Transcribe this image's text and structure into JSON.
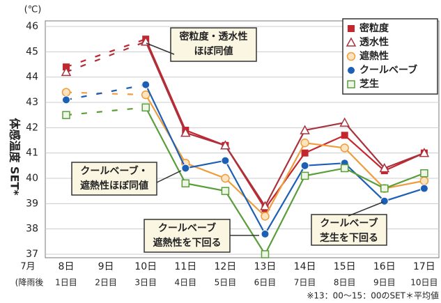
{
  "chart_data": {
    "type": "line",
    "unit": "(℃)",
    "y_label": "体感温度 SET*",
    "x_prefix": "7月",
    "day_prefix": "(降雨後",
    "categories": [
      "8日",
      "9日",
      "10日",
      "11日",
      "12日",
      "13日",
      "14日",
      "15日",
      "16日",
      "17日"
    ],
    "days": [
      "1日目",
      "2日目",
      "3日目",
      "4日目",
      "5日目",
      "6日目",
      "7日目",
      "8日目",
      "9日目",
      "10日目"
    ],
    "ylim": [
      37,
      46
    ],
    "yticks": [
      37,
      38,
      39,
      40,
      41,
      42,
      43,
      44,
      45,
      46
    ],
    "grid": true,
    "legend": "upper right",
    "note": "※13：00～15：00のSET＊平均値",
    "series": [
      {
        "name": "密粒度",
        "color": "#c4262e",
        "marker": "square",
        "values": [
          44.4,
          null,
          45.5,
          41.9,
          41.3,
          38.8,
          41.0,
          41.7,
          40.3,
          41.0
        ]
      },
      {
        "name": "透水性",
        "color": "#a8323e",
        "marker": "triangle",
        "values": [
          44.2,
          null,
          45.4,
          41.8,
          41.3,
          38.9,
          41.9,
          42.2,
          40.4,
          41.0
        ]
      },
      {
        "name": "遮熱性",
        "color": "#ee9c3c",
        "marker": "circle-open",
        "values": [
          43.4,
          null,
          43.3,
          40.6,
          40.0,
          38.5,
          41.4,
          41.2,
          39.6,
          39.9
        ]
      },
      {
        "name": "クールベーブ",
        "color": "#1c5fb5",
        "marker": "circle",
        "values": [
          43.1,
          null,
          43.7,
          40.4,
          40.7,
          37.8,
          40.5,
          40.6,
          39.1,
          39.6
        ]
      },
      {
        "name": "芝生",
        "color": "#5a9e3a",
        "marker": "square-open",
        "values": [
          42.5,
          null,
          42.8,
          39.8,
          39.5,
          37.0,
          40.1,
          40.4,
          39.6,
          40.2
        ]
      }
    ],
    "annotations": [
      {
        "lines": [
          {
            "text": "密粒度・透水性",
            "color": "#222"
          },
          {
            "text": "ほぼ同値",
            "color": "#222"
          }
        ]
      },
      {
        "lines": [
          {
            "text": "クールベーブ・",
            "color": "#d8282e"
          },
          {
            "text": "遮熱性ほぼ同値",
            "color": "#222"
          }
        ]
      },
      {
        "lines": [
          {
            "text": "クールベーブ",
            "color": "#d8282e"
          },
          {
            "text": "遮熱性を下回る",
            "color": "#222"
          }
        ]
      },
      {
        "lines": [
          {
            "text": "クールベーブ",
            "color": "#d8282e"
          },
          {
            "text": "芝生を下回る",
            "color": "#222"
          }
        ]
      }
    ]
  }
}
